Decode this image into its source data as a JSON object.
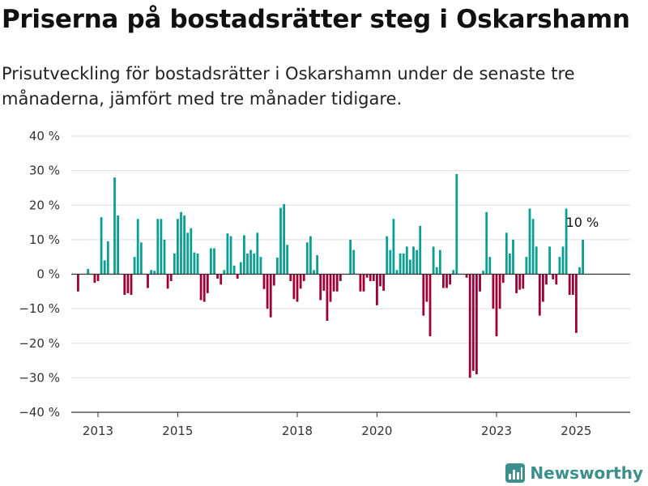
{
  "title": "Priserna på bostadsrätter steg i Oskarshamn",
  "subtitle": "Prisutveckling för bostadsrätter i Oskarshamn under de senaste tre månaderna, jämfört med tre månader tidigare.",
  "brand": "Newsworthy",
  "colors": {
    "positive": "#0b9e92",
    "negative": "#9e0038",
    "axis": "#333333",
    "grid": "#dddddd",
    "brand": "#3d8f8b"
  },
  "icons": {
    "brand_logo": "bar-chart-icon"
  },
  "chart_data": {
    "type": "bar",
    "title": "",
    "xlabel": "",
    "ylabel": "",
    "ylim": [
      -40,
      40
    ],
    "yticks": [
      -40,
      -30,
      -20,
      -10,
      0,
      10,
      20,
      30,
      40
    ],
    "ytick_labels": [
      "−40 %",
      "−30 %",
      "−20 %",
      "−10 %",
      "0 %",
      "10 %",
      "20 %",
      "30 %",
      "40 %"
    ],
    "xticks": [
      "2013",
      "2015",
      "2018",
      "2020",
      "2023",
      "2025"
    ],
    "grid": true,
    "data_label": {
      "text": "10 %",
      "month": "2025-09"
    },
    "start_month": "2012-07",
    "values": [
      -5,
      0,
      0,
      1.5,
      0,
      -2.5,
      -2,
      16.5,
      4,
      9.5,
      0,
      28,
      17,
      0,
      -6,
      -5.5,
      -6,
      5,
      16,
      9.2,
      0,
      -4,
      1.2,
      1,
      16,
      16,
      10,
      -4.2,
      -2,
      6,
      16,
      18,
      17,
      12,
      13.3,
      6.3,
      6,
      -7.5,
      -8,
      -5.5,
      7.5,
      7.5,
      -1.3,
      -3,
      1.2,
      11.8,
      11,
      2.5,
      -1.3,
      3.5,
      11.3,
      6,
      7,
      6,
      12,
      5,
      -4.3,
      -10,
      -12.5,
      -3.3,
      4.8,
      19.2,
      20.3,
      8.5,
      -2,
      -7.2,
      -8,
      -4.2,
      -2,
      9.2,
      11,
      1.2,
      5.5,
      -7.5,
      -4.8,
      -13.5,
      -8,
      -5,
      -5,
      -2,
      0,
      0,
      10,
      7,
      0,
      -5,
      -5,
      -1,
      -2,
      -2,
      -9,
      -3.5,
      -4.8,
      11,
      7,
      16,
      1.2,
      6,
      6,
      8,
      4.2,
      8,
      7,
      14,
      -12,
      -8,
      -18,
      8,
      2,
      7,
      -4,
      -4,
      -3,
      1.2,
      29,
      0,
      0,
      -1,
      -30,
      -28,
      -29,
      -5,
      1,
      18,
      5,
      -10,
      -18,
      -10,
      -2.5,
      12,
      6,
      10,
      -5.5,
      -4.5,
      -4.2,
      5,
      19,
      16,
      8,
      -12,
      -8,
      -3,
      8,
      -1.5,
      -3,
      5,
      8,
      19,
      -6,
      -6,
      -17,
      2,
      10
    ]
  }
}
